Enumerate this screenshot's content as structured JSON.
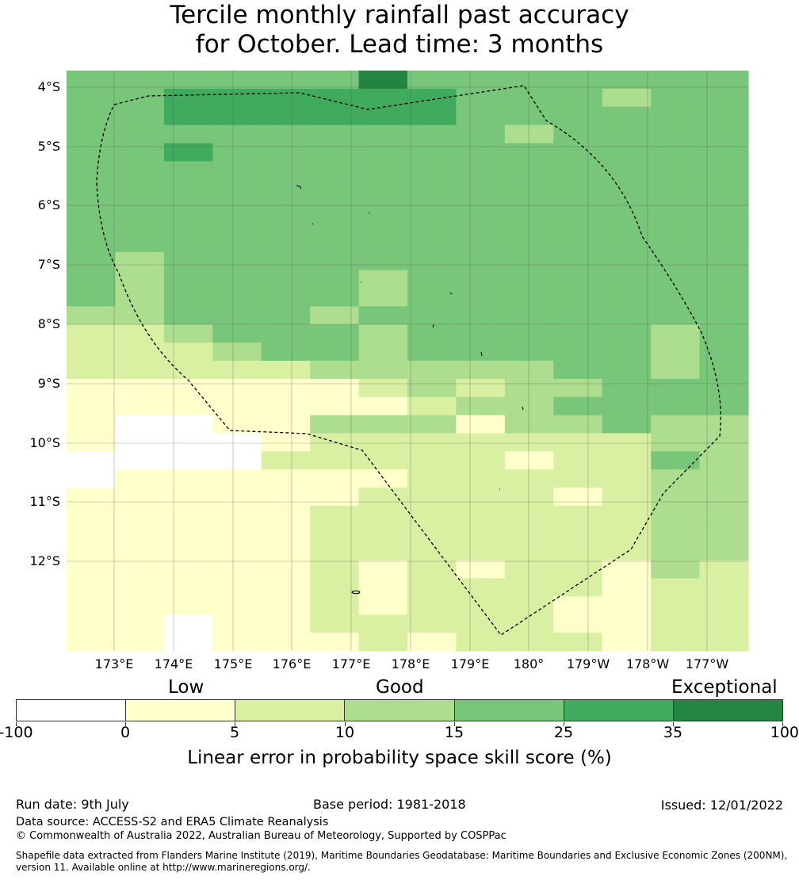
{
  "title": {
    "line1": "Tercile monthly rainfall past accuracy",
    "line2": "for October. Lead time: 3 months"
  },
  "map": {
    "lat_labels": [
      "4°S",
      "5°S",
      "6°S",
      "7°S",
      "8°S",
      "9°S",
      "10°S",
      "11°S",
      "12°S"
    ],
    "lon_labels": [
      "173°E",
      "174°E",
      "175°E",
      "176°E",
      "177°E",
      "178°E",
      "179°E",
      "180°",
      "179°W",
      "178°W",
      "177°W"
    ],
    "grid_colors": [
      "#ffffff",
      "#ffffcc",
      "#d9f0a3",
      "#addd8e",
      "#78c679",
      "#41ab5d",
      "#238443"
    ],
    "grid": [
      [
        4,
        4,
        4,
        4,
        4,
        4,
        6,
        4,
        4,
        4,
        4,
        4,
        4,
        4
      ],
      [
        4,
        4,
        5,
        5,
        5,
        5,
        5,
        5,
        4,
        4,
        4,
        3,
        4,
        4
      ],
      [
        4,
        4,
        5,
        5,
        5,
        5,
        5,
        5,
        4,
        4,
        4,
        4,
        4,
        4
      ],
      [
        4,
        4,
        4,
        4,
        4,
        4,
        4,
        4,
        4,
        3,
        4,
        4,
        4,
        4
      ],
      [
        4,
        4,
        5,
        4,
        4,
        4,
        4,
        4,
        4,
        4,
        4,
        4,
        4,
        4
      ],
      [
        4,
        4,
        4,
        4,
        4,
        4,
        4,
        4,
        4,
        4,
        4,
        4,
        4,
        4
      ],
      [
        4,
        4,
        4,
        4,
        4,
        4,
        4,
        4,
        4,
        4,
        4,
        4,
        4,
        4
      ],
      [
        4,
        4,
        4,
        4,
        4,
        4,
        4,
        4,
        4,
        4,
        4,
        4,
        4,
        4
      ],
      [
        4,
        4,
        4,
        4,
        4,
        4,
        4,
        4,
        4,
        4,
        4,
        4,
        4,
        4
      ],
      [
        4,
        4,
        4,
        4,
        4,
        4,
        4,
        4,
        4,
        4,
        4,
        4,
        4,
        4
      ],
      [
        4,
        3,
        4,
        4,
        4,
        4,
        4,
        4,
        4,
        4,
        4,
        4,
        4,
        4
      ],
      [
        4,
        3,
        4,
        4,
        4,
        4,
        3,
        4,
        4,
        4,
        4,
        4,
        4,
        4
      ],
      [
        4,
        3,
        4,
        4,
        4,
        4,
        3,
        4,
        4,
        4,
        4,
        4,
        4,
        4
      ],
      [
        3,
        3,
        4,
        4,
        4,
        3,
        4,
        4,
        4,
        4,
        4,
        4,
        4,
        4
      ],
      [
        2,
        2,
        3,
        4,
        4,
        4,
        3,
        4,
        4,
        4,
        4,
        4,
        3,
        4
      ],
      [
        2,
        2,
        2,
        3,
        4,
        4,
        3,
        4,
        4,
        4,
        4,
        4,
        3,
        4
      ],
      [
        2,
        2,
        2,
        2,
        2,
        3,
        3,
        3,
        3,
        3,
        4,
        4,
        3,
        4
      ],
      [
        1,
        1,
        1,
        1,
        1,
        1,
        2,
        3,
        2,
        3,
        3,
        4,
        4,
        4
      ],
      [
        1,
        1,
        1,
        1,
        1,
        1,
        1,
        2,
        3,
        3,
        4,
        4,
        4,
        4
      ],
      [
        1,
        0,
        0,
        1,
        1,
        3,
        3,
        3,
        1,
        3,
        3,
        4,
        3,
        3
      ],
      [
        1,
        0,
        0,
        0,
        1,
        2,
        2,
        2,
        2,
        2,
        2,
        2,
        3,
        3
      ],
      [
        0,
        0,
        0,
        0,
        2,
        2,
        2,
        2,
        2,
        1,
        2,
        2,
        4,
        3
      ],
      [
        0,
        1,
        1,
        1,
        1,
        1,
        1,
        2,
        2,
        2,
        2,
        2,
        3,
        3
      ],
      [
        1,
        1,
        1,
        1,
        1,
        1,
        2,
        2,
        2,
        2,
        1,
        2,
        3,
        3
      ],
      [
        1,
        1,
        1,
        1,
        1,
        2,
        2,
        2,
        2,
        2,
        2,
        2,
        3,
        3
      ],
      [
        1,
        1,
        1,
        1,
        1,
        2,
        2,
        2,
        2,
        2,
        2,
        2,
        3,
        3
      ],
      [
        1,
        1,
        1,
        1,
        1,
        2,
        2,
        2,
        2,
        2,
        2,
        2,
        3,
        3
      ],
      [
        1,
        1,
        1,
        1,
        1,
        2,
        1,
        2,
        1,
        2,
        2,
        1,
        3,
        2
      ],
      [
        1,
        1,
        1,
        1,
        1,
        2,
        1,
        2,
        2,
        2,
        2,
        1,
        2,
        2
      ],
      [
        1,
        1,
        1,
        1,
        1,
        2,
        1,
        2,
        2,
        2,
        1,
        1,
        2,
        2
      ],
      [
        1,
        1,
        0,
        1,
        1,
        2,
        2,
        2,
        2,
        2,
        1,
        1,
        2,
        2
      ],
      [
        1,
        1,
        0,
        1,
        1,
        1,
        2,
        1,
        2,
        2,
        2,
        1,
        2,
        2
      ]
    ]
  },
  "legend": {
    "categories": [
      "Low",
      "Good",
      "Exceptional"
    ],
    "bounds": [
      "-100",
      "0",
      "5",
      "10",
      "15",
      "25",
      "35",
      "100"
    ],
    "title": "Linear error in probability space skill score (%)"
  },
  "footer": {
    "run_date": "Run date: 9th July",
    "base_period": "Base period: 1981-2018",
    "issued": "Issued: 12/01/2022",
    "data_source": "Data source: ACCESS-S2 and ERA5 Climate Reanalysis",
    "copyright": "© Commonwealth of Australia 2022, Australian Bureau of Meteorology, Supported by COSPPac",
    "shapefile_line1": "Shapefile data extracted from Flanders Marine Institute (2019), Maritime Boundaries Geodatabase: Maritime Boundaries and Exclusive Economic Zones (200NM),",
    "shapefile_line2": "version 11. Available online at http://www.marineregions.org/."
  }
}
